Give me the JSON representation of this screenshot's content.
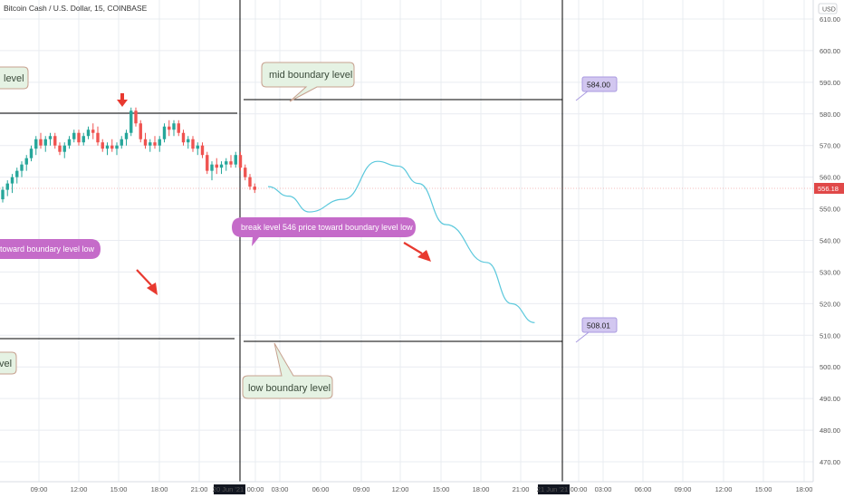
{
  "header": {
    "symbol_title": "Bitcoin Cash / U.S. Dollar, 15, COINBASE",
    "currency": "USD"
  },
  "colors": {
    "bull": "#26a69a",
    "bear": "#ef5350",
    "grid": "#e9ecf1",
    "axis_text": "#555555",
    "projection": "#5bc8dc",
    "current_price": "#e04848",
    "callout_green_fill": "#e5f2e3",
    "callout_green_border": "#c7a18f",
    "callout_purple_fill": "#c56bc9",
    "price_label_fill": "#d2c7f0",
    "price_label_border": "#a99ae0",
    "arrow": "#e8392f"
  },
  "chart_data": {
    "type": "candlestick",
    "x_time_labels": [
      "09:00",
      "12:00",
      "15:00",
      "18:00",
      "21:00",
      "20 Jun '21",
      "00:00",
      "03:00",
      "06:00",
      "09:00",
      "12:00",
      "15:00",
      "18:00",
      "21:00",
      "21 Jun '21",
      "00:00",
      "03:00",
      "06:00",
      "09:00",
      "12:00",
      "15:00",
      "18:00"
    ],
    "y_axis": {
      "ticks": [
        470,
        480,
        490,
        500,
        510,
        520,
        530,
        540,
        550,
        560,
        570,
        580,
        590,
        600,
        610
      ],
      "tick_labels": [
        "470.00",
        "480.00",
        "490.00",
        "500.00",
        "510.00",
        "520.00",
        "530.00",
        "540.00",
        "550.00",
        "560.00",
        "570.00",
        "580.00",
        "590.00",
        "600.00",
        "610.00"
      ],
      "range": [
        465,
        614
      ]
    },
    "current_price": 556.18,
    "current_price_label": "556.18",
    "candles": [
      [
        553,
        557,
        552,
        556
      ],
      [
        556,
        559,
        554,
        558
      ],
      [
        558,
        561,
        555,
        560
      ],
      [
        560,
        563,
        558,
        562
      ],
      [
        562,
        565,
        560,
        564
      ],
      [
        564,
        567,
        562,
        566
      ],
      [
        566,
        570,
        565,
        569
      ],
      [
        569,
        573,
        567,
        572
      ],
      [
        572,
        574,
        569,
        570
      ],
      [
        570,
        573,
        568,
        572
      ],
      [
        572,
        574,
        570,
        573
      ],
      [
        573,
        574,
        569,
        570
      ],
      [
        570,
        571,
        567,
        568
      ],
      [
        568,
        571,
        566,
        570
      ],
      [
        570,
        573,
        569,
        572
      ],
      [
        572,
        575,
        571,
        574
      ],
      [
        574,
        575,
        570,
        571
      ],
      [
        571,
        574,
        570,
        573
      ],
      [
        573,
        576,
        572,
        575
      ],
      [
        575,
        577,
        572,
        574
      ],
      [
        574,
        576,
        570,
        571
      ],
      [
        571,
        572,
        568,
        569
      ],
      [
        569,
        571,
        567,
        570
      ],
      [
        570,
        572,
        568,
        569
      ],
      [
        569,
        571,
        567,
        570
      ],
      [
        570,
        573,
        569,
        572
      ],
      [
        572,
        575,
        570,
        574
      ],
      [
        574,
        582,
        573,
        581
      ],
      [
        581,
        582,
        576,
        577
      ],
      [
        577,
        578,
        571,
        572
      ],
      [
        572,
        574,
        569,
        570
      ],
      [
        570,
        572,
        568,
        571
      ],
      [
        571,
        573,
        569,
        570
      ],
      [
        570,
        573,
        568,
        572
      ],
      [
        572,
        577,
        571,
        576
      ],
      [
        576,
        578,
        573,
        575
      ],
      [
        575,
        578,
        573,
        577
      ],
      [
        577,
        578,
        573,
        574
      ],
      [
        574,
        575,
        570,
        571
      ],
      [
        571,
        573,
        569,
        572
      ],
      [
        572,
        573,
        568,
        569
      ],
      [
        569,
        571,
        567,
        570
      ],
      [
        570,
        571,
        566,
        567
      ],
      [
        567,
        568,
        561,
        562
      ],
      [
        562,
        565,
        559,
        564
      ],
      [
        564,
        566,
        561,
        563
      ],
      [
        563,
        565,
        561,
        564
      ],
      [
        564,
        566,
        562,
        565
      ],
      [
        565,
        567,
        563,
        564
      ],
      [
        564,
        568,
        563,
        567
      ],
      [
        567,
        568,
        562,
        563
      ],
      [
        563,
        564,
        559,
        560
      ],
      [
        560,
        561,
        556,
        557
      ],
      [
        557,
        558,
        555,
        556
      ]
    ],
    "projection_path": [
      [
        0.0,
        557.0
      ],
      [
        1.5,
        554.0
      ],
      [
        3.0,
        549.0
      ],
      [
        5.5,
        553.0
      ],
      [
        8.0,
        565.0
      ],
      [
        9.5,
        563.5
      ],
      [
        11.0,
        558.0
      ],
      [
        13.0,
        545.0
      ],
      [
        16.0,
        533.0
      ],
      [
        17.8,
        520.0
      ],
      [
        19.5,
        514.0
      ]
    ],
    "levels": [
      {
        "name": "mid-boundary",
        "value": 584.0
      },
      {
        "name": "low-boundary",
        "value": 508.01
      },
      {
        "name": "left-upper-boundary",
        "value": 580.0
      },
      {
        "name": "left-lower-boundary",
        "value": 509.0
      }
    ]
  },
  "annotations": {
    "mid_boundary_label": "mid boundary level",
    "low_boundary_label": "low boundary level",
    "level_left_top": "level",
    "level_left_bottom": "vel",
    "break_level_text": "break level  546 price toward  boundary level low",
    "toward_low_text": "toward  boundary level low",
    "price_label_top": "584.00",
    "price_label_bottom": "508.01"
  }
}
